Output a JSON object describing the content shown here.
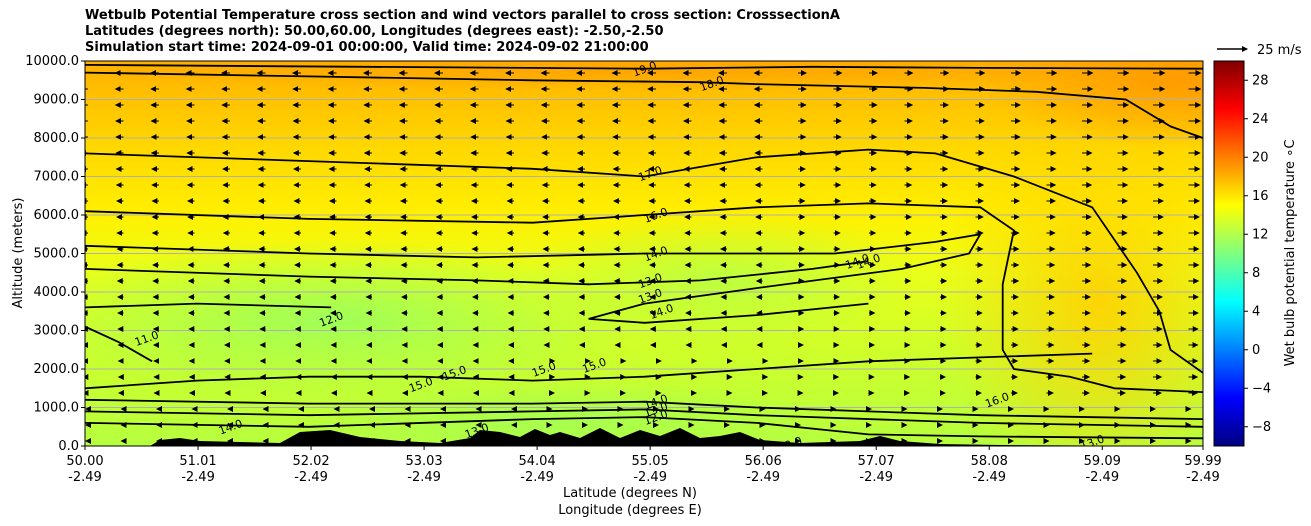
{
  "chart_data": {
    "type": "heatmap",
    "title_lines": [
      "Wetbulb Potential Temperature cross section and wind vectors parallel to cross section: CrosssectionA",
      "Latitudes (degrees north): 50.00,60.00, Longitudes (degrees east): -2.50,-2.50",
      "Simulation start time: 2024-09-01 00:00:00, Valid time: 2024-09-02 21:00:00"
    ],
    "xlabel_line1": "Latitude (degrees N)",
    "xlabel_line2": "Longitude (degrees E)",
    "ylabel": "Altitude (meters)",
    "xlim": [
      50.0,
      59.99
    ],
    "ylim": [
      0,
      10000
    ],
    "x_ticks": [
      {
        "lat": "50.00",
        "lon": "-2.49",
        "v": 50.0
      },
      {
        "lat": "51.01",
        "lon": "-2.49",
        "v": 51.01
      },
      {
        "lat": "52.02",
        "lon": "-2.49",
        "v": 52.02
      },
      {
        "lat": "53.03",
        "lon": "-2.49",
        "v": 53.03
      },
      {
        "lat": "54.04",
        "lon": "-2.49",
        "v": 54.04
      },
      {
        "lat": "55.05",
        "lon": "-2.49",
        "v": 55.05
      },
      {
        "lat": "56.06",
        "lon": "-2.49",
        "v": 56.06
      },
      {
        "lat": "57.07",
        "lon": "-2.49",
        "v": 57.07
      },
      {
        "lat": "58.08",
        "lon": "-2.49",
        "v": 58.08
      },
      {
        "lat": "59.09",
        "lon": "-2.49",
        "v": 59.09
      },
      {
        "lat": "59.99",
        "lon": "-2.49",
        "v": 59.99
      }
    ],
    "y_ticks": [
      {
        "label": "0.0",
        "v": 0
      },
      {
        "label": "1000.0",
        "v": 1000
      },
      {
        "label": "2000.0",
        "v": 2000
      },
      {
        "label": "3000.0",
        "v": 3000
      },
      {
        "label": "4000.0",
        "v": 4000
      },
      {
        "label": "5000.0",
        "v": 5000
      },
      {
        "label": "6000.0",
        "v": 6000
      },
      {
        "label": "7000.0",
        "v": 7000
      },
      {
        "label": "8000.0",
        "v": 8000
      },
      {
        "label": "9000.0",
        "v": 9000
      },
      {
        "label": "10000.0",
        "v": 10000
      }
    ],
    "grid": "horizontal",
    "colorbar": {
      "label": "Wet bulb potential temperature ∘C",
      "range": [
        -10,
        30
      ],
      "colormap": "jet",
      "ticks": [
        {
          "label": "−8",
          "v": -8
        },
        {
          "label": "−4",
          "v": -4
        },
        {
          "label": "0",
          "v": 0
        },
        {
          "label": "4",
          "v": 4
        },
        {
          "label": "8",
          "v": 8
        },
        {
          "label": "12",
          "v": 12
        },
        {
          "label": "16",
          "v": 16
        },
        {
          "label": "20",
          "v": 20
        },
        {
          "label": "24",
          "v": 24
        },
        {
          "label": "28",
          "v": 28
        }
      ]
    },
    "quiver_key": {
      "label": "25 m/s",
      "speed": 25
    },
    "contours": [
      {
        "level": "19.0",
        "points": [
          [
            50.0,
            9900
          ],
          [
            52.5,
            9850
          ],
          [
            55.0,
            9800
          ],
          [
            56.5,
            9850
          ],
          [
            58.0,
            9820
          ],
          [
            59.99,
            9800
          ]
        ],
        "labels": [
          [
            55.0,
            9800
          ]
        ]
      },
      {
        "level": "18.0",
        "points": [
          [
            50.0,
            9700
          ],
          [
            52.0,
            9600
          ],
          [
            54.0,
            9500
          ],
          [
            55.5,
            9450
          ],
          [
            56.0,
            9400
          ],
          [
            57.5,
            9300
          ],
          [
            58.5,
            9200
          ],
          [
            59.3,
            9000
          ],
          [
            59.7,
            8300
          ],
          [
            59.99,
            8000
          ]
        ],
        "labels": [
          [
            55.6,
            9420
          ]
        ]
      },
      {
        "level": "17.0",
        "points": [
          [
            50.0,
            7600
          ],
          [
            52.0,
            7400
          ],
          [
            54.0,
            7200
          ],
          [
            55.0,
            7000
          ],
          [
            56.0,
            7500
          ],
          [
            57.0,
            7700
          ],
          [
            57.6,
            7600
          ],
          [
            58.3,
            7000
          ],
          [
            59.0,
            6200
          ],
          [
            59.4,
            4500
          ],
          [
            59.6,
            3500
          ],
          [
            59.7,
            2500
          ],
          [
            59.99,
            1900
          ]
        ],
        "labels": [
          [
            55.05,
            7080
          ]
        ]
      },
      {
        "level": "16.0",
        "points": [
          [
            50.0,
            6100
          ],
          [
            52.0,
            5900
          ],
          [
            54.0,
            5800
          ],
          [
            55.0,
            6000
          ],
          [
            56.0,
            6200
          ],
          [
            57.0,
            6300
          ],
          [
            58.0,
            6200
          ],
          [
            58.3,
            5600
          ],
          [
            58.2,
            4200
          ],
          [
            58.2,
            2500
          ],
          [
            58.3,
            2000
          ],
          [
            58.8,
            1800
          ],
          [
            59.2,
            1500
          ],
          [
            59.99,
            1400
          ]
        ],
        "labels": [
          [
            55.1,
            6000
          ],
          [
            58.15,
            1200
          ]
        ]
      },
      {
        "level": "14.0",
        "points": [
          [
            50.0,
            5200
          ],
          [
            52.0,
            5000
          ],
          [
            53.5,
            4900
          ],
          [
            55.0,
            5000
          ],
          [
            56.0,
            5000
          ],
          [
            56.7,
            5000
          ],
          [
            57.6,
            5300
          ],
          [
            58.0,
            5500
          ],
          [
            57.9,
            5000
          ],
          [
            57.3,
            4600
          ],
          [
            56.0,
            4100
          ],
          [
            55.0,
            3700
          ],
          [
            54.5,
            3300
          ],
          [
            55.0,
            3200
          ],
          [
            56.0,
            3400
          ],
          [
            57.0,
            3700
          ]
        ],
        "labels": [
          [
            55.1,
            5000
          ],
          [
            55.15,
            3500
          ],
          [
            56.9,
            4800
          ],
          [
            57.0,
            4800
          ]
        ]
      },
      {
        "level": "13.0",
        "points": [
          [
            50.0,
            4600
          ],
          [
            52.0,
            4400
          ],
          [
            53.5,
            4300
          ],
          [
            54.5,
            4200
          ],
          [
            55.5,
            4300
          ],
          [
            56.5,
            4600
          ],
          [
            57.0,
            4800
          ]
        ],
        "labels": [
          [
            55.05,
            4300
          ],
          [
            55.05,
            3900
          ]
        ]
      },
      {
        "level": "12.0",
        "points": [
          [
            50.0,
            3600
          ],
          [
            51.0,
            3700
          ],
          [
            52.2,
            3600
          ]
        ],
        "labels": [
          [
            52.2,
            3300
          ]
        ]
      },
      {
        "level": "11.0",
        "points": [
          [
            50.0,
            3100
          ],
          [
            50.3,
            2700
          ],
          [
            50.6,
            2200
          ]
        ],
        "labels": [
          [
            50.55,
            2800
          ]
        ]
      },
      {
        "level": "15.0",
        "points": [
          [
            50.0,
            1500
          ],
          [
            51.0,
            1700
          ],
          [
            52.0,
            1800
          ],
          [
            53.0,
            1800
          ],
          [
            54.0,
            1700
          ],
          [
            55.0,
            1800
          ],
          [
            56.0,
            2000
          ],
          [
            57.0,
            2200
          ],
          [
            58.0,
            2300
          ],
          [
            59.0,
            2400
          ]
        ],
        "labels": [
          [
            53.0,
            1600
          ],
          [
            53.3,
            1900
          ],
          [
            54.1,
            2000
          ],
          [
            54.55,
            2100
          ]
        ]
      },
      {
        "level": "14.0",
        "points": [
          [
            50.0,
            1200
          ],
          [
            52.0,
            1100
          ],
          [
            54.0,
            1100
          ],
          [
            55.0,
            1150
          ],
          [
            56.0,
            1000
          ],
          [
            57.0,
            900
          ],
          [
            58.0,
            800
          ],
          [
            59.99,
            700
          ]
        ],
        "labels": [
          [
            55.1,
            1150
          ],
          [
            51.3,
            500
          ]
        ]
      },
      {
        "level": "13.0",
        "points": [
          [
            50.0,
            900
          ],
          [
            52.0,
            800
          ],
          [
            54.0,
            900
          ],
          [
            55.0,
            950
          ],
          [
            56.0,
            800
          ],
          [
            58.0,
            600
          ],
          [
            59.99,
            500
          ]
        ],
        "labels": [
          [
            55.1,
            950
          ],
          [
            59.0,
            100
          ],
          [
            53.5,
            400
          ]
        ]
      },
      {
        "level": "12.0",
        "points": [
          [
            50.0,
            600
          ],
          [
            52.0,
            500
          ],
          [
            54.0,
            700
          ],
          [
            55.0,
            750
          ],
          [
            56.0,
            600
          ],
          [
            57.0,
            300
          ],
          [
            58.0,
            250
          ],
          [
            59.99,
            200
          ]
        ],
        "labels": [
          [
            55.1,
            750
          ],
          [
            56.3,
            50
          ]
        ]
      }
    ],
    "wind_description": "parallel vectors: mostly pointing left (south) above 4000 m in the southern half, pointing right (north) in the northern half"
  }
}
